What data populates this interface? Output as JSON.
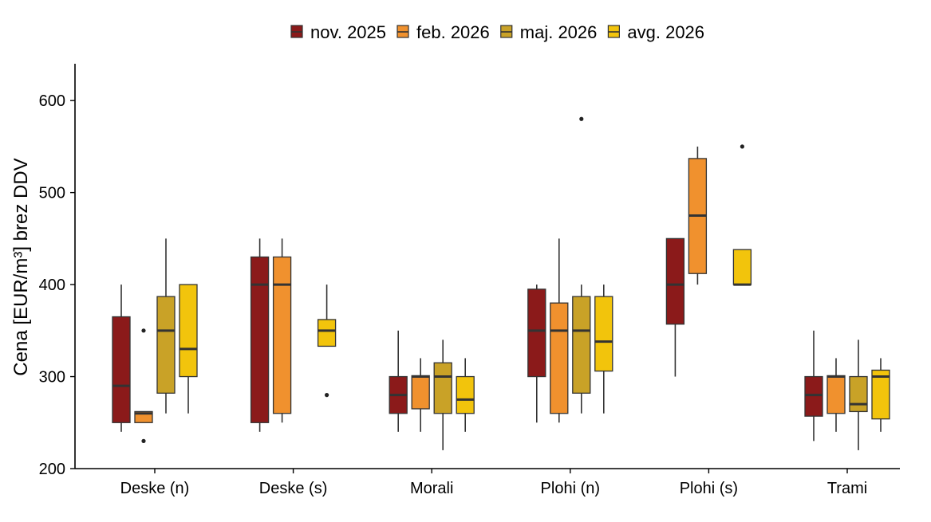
{
  "chart_data": {
    "type": "boxplot",
    "title": "",
    "xlabel": "",
    "ylabel": "Cena [EUR/m³] brez DDV",
    "ylim": [
      200,
      640
    ],
    "yticks": [
      200,
      300,
      400,
      500,
      600
    ],
    "grid": false,
    "legend_position": "top",
    "categories": [
      "Deske (n)",
      "Deske (s)",
      "Morali",
      "Plohi (n)",
      "Plohi (s)",
      "Trami"
    ],
    "series": [
      {
        "name": "nov. 2025",
        "color": "#8b1a1a",
        "boxes": [
          {
            "whisker_low": 240,
            "q1": 250,
            "median": 290,
            "q3": 365,
            "whisker_high": 400,
            "outliers": []
          },
          {
            "whisker_low": 240,
            "q1": 250,
            "median": 400,
            "q3": 430,
            "whisker_high": 450,
            "outliers": []
          },
          {
            "whisker_low": 240,
            "q1": 260,
            "median": 280,
            "q3": 300,
            "whisker_high": 350,
            "outliers": []
          },
          {
            "whisker_low": 250,
            "q1": 300,
            "median": 350,
            "q3": 395,
            "whisker_high": 400,
            "outliers": []
          },
          {
            "whisker_low": 300,
            "q1": 357,
            "median": 400,
            "q3": 450,
            "whisker_high": 450,
            "outliers": []
          },
          {
            "whisker_low": 230,
            "q1": 257,
            "median": 280,
            "q3": 300,
            "whisker_high": 350,
            "outliers": []
          }
        ]
      },
      {
        "name": "feb. 2026",
        "color": "#f0912e",
        "boxes": [
          {
            "whisker_low": 250,
            "q1": 250,
            "median": 260,
            "q3": 262,
            "whisker_high": 262,
            "outliers": [
              230,
              350
            ]
          },
          {
            "whisker_low": 250,
            "q1": 260,
            "median": 400,
            "q3": 430,
            "whisker_high": 450,
            "outliers": []
          },
          {
            "whisker_low": 240,
            "q1": 265,
            "median": 300,
            "q3": 301,
            "whisker_high": 320,
            "outliers": []
          },
          {
            "whisker_low": 250,
            "q1": 260,
            "median": 350,
            "q3": 380,
            "whisker_high": 450,
            "outliers": []
          },
          {
            "whisker_low": 400,
            "q1": 412,
            "median": 475,
            "q3": 537,
            "whisker_high": 550,
            "outliers": []
          },
          {
            "whisker_low": 240,
            "q1": 260,
            "median": 300,
            "q3": 301,
            "whisker_high": 320,
            "outliers": []
          }
        ]
      },
      {
        "name": "maj. 2026",
        "color": "#c9a227",
        "boxes": [
          {
            "whisker_low": 260,
            "q1": 282,
            "median": 350,
            "q3": 387,
            "whisker_high": 450,
            "outliers": []
          },
          null,
          {
            "whisker_low": 220,
            "q1": 260,
            "median": 300,
            "q3": 315,
            "whisker_high": 340,
            "outliers": []
          },
          {
            "whisker_low": 260,
            "q1": 282,
            "median": 350,
            "q3": 387,
            "whisker_high": 400,
            "outliers": [
              580
            ]
          },
          null,
          {
            "whisker_low": 220,
            "q1": 262,
            "median": 270,
            "q3": 300,
            "whisker_high": 340,
            "outliers": []
          }
        ]
      },
      {
        "name": "avg. 2026",
        "color": "#f2c40c",
        "boxes": [
          {
            "whisker_low": 260,
            "q1": 300,
            "median": 330,
            "q3": 400,
            "whisker_high": 400,
            "outliers": []
          },
          {
            "whisker_low": 333,
            "q1": 333,
            "median": 350,
            "q3": 362,
            "whisker_high": 400,
            "outliers": [
              280
            ]
          },
          {
            "whisker_low": 240,
            "q1": 260,
            "median": 275,
            "q3": 300,
            "whisker_high": 320,
            "outliers": []
          },
          {
            "whisker_low": 260,
            "q1": 306,
            "median": 338,
            "q3": 387,
            "whisker_high": 400,
            "outliers": []
          },
          {
            "whisker_low": 400,
            "q1": 400,
            "median": 400,
            "q3": 438,
            "whisker_high": 438,
            "outliers": [
              550
            ]
          },
          {
            "whisker_low": 240,
            "q1": 254,
            "median": 300,
            "q3": 307,
            "whisker_high": 320,
            "outliers": []
          }
        ]
      }
    ]
  }
}
